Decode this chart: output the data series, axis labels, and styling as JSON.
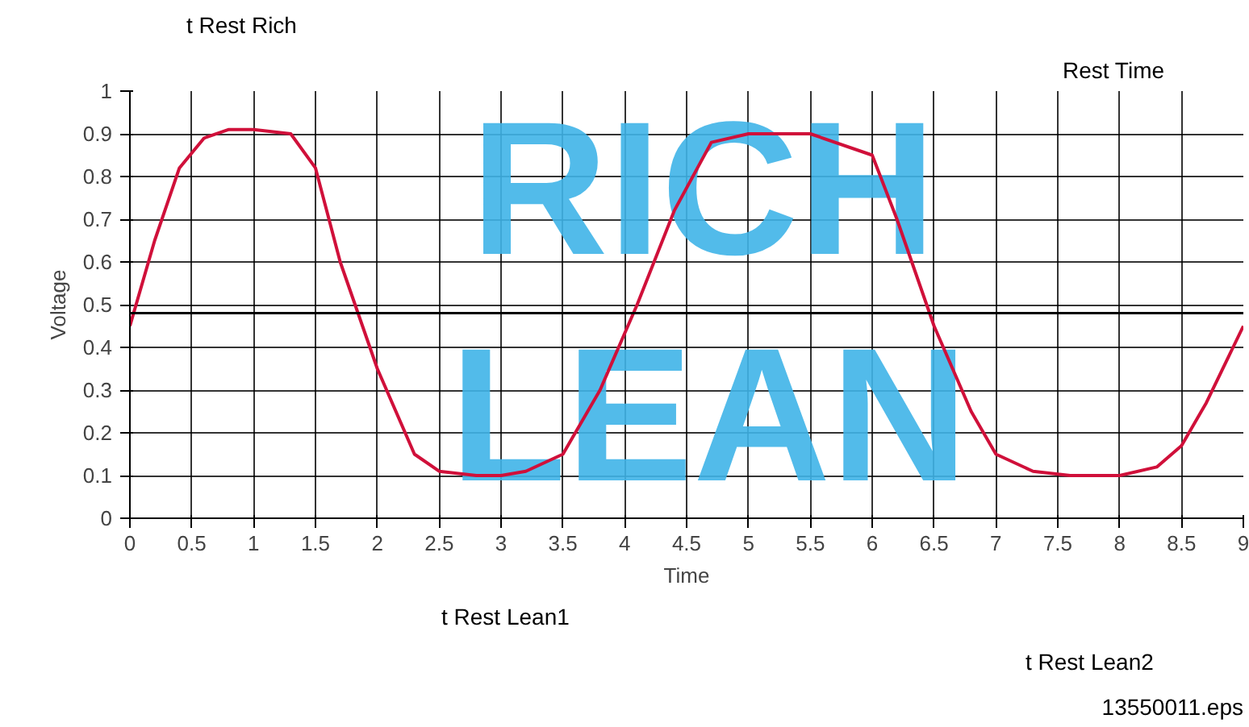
{
  "chart_data": {
    "type": "line",
    "xlabel": "Time",
    "ylabel": "Voltage",
    "x": [
      0,
      0.2,
      0.4,
      0.6,
      0.8,
      1,
      1.3,
      1.5,
      1.7,
      2,
      2.3,
      2.5,
      2.8,
      3,
      3.2,
      3.5,
      3.8,
      4.1,
      4.4,
      4.7,
      5,
      5.5,
      6,
      6.2,
      6.5,
      6.8,
      7,
      7.3,
      7.6,
      8,
      8.3,
      8.5,
      8.7,
      9
    ],
    "series": [
      {
        "color": "#d0103a",
        "values": [
          0.45,
          0.65,
          0.82,
          0.89,
          0.91,
          0.91,
          0.9,
          0.82,
          0.6,
          0.35,
          0.15,
          0.11,
          0.1,
          0.1,
          0.11,
          0.15,
          0.3,
          0.5,
          0.72,
          0.88,
          0.9,
          0.9,
          0.85,
          0.7,
          0.45,
          0.25,
          0.15,
          0.11,
          0.1,
          0.1,
          0.12,
          0.17,
          0.27,
          0.45
        ]
      }
    ],
    "xlim": [
      0,
      9
    ],
    "ylim": [
      0,
      1
    ],
    "xticks": [
      0,
      0.5,
      1,
      1.5,
      2,
      2.5,
      3,
      3.5,
      4,
      4.5,
      5,
      5.5,
      6,
      6.5,
      7,
      7.5,
      8,
      8.5,
      9
    ],
    "yticks": [
      0,
      0.1,
      0.2,
      0.3,
      0.4,
      0.5,
      0.6,
      0.7,
      0.8,
      0.9,
      1
    ],
    "grid": true,
    "ref_lines": [
      {
        "axis": "y",
        "value": 0.48,
        "color": "#000000"
      }
    ],
    "annotations": [
      "RICH",
      "LEAN",
      "Rest Time",
      "t Rest Rich",
      "t Rest Lean1",
      "t Rest Lean2",
      "13550011.eps"
    ]
  }
}
